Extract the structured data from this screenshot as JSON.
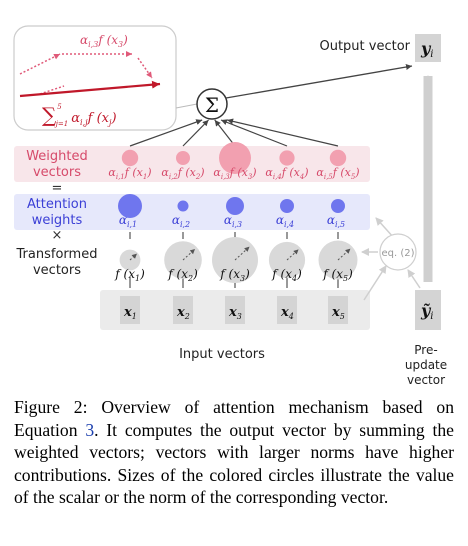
{
  "figure": {
    "labels": {
      "output_vector": "Output vector",
      "weighted": "Weighted",
      "vectors": "vectors",
      "attention": "Attention",
      "weights": "weights",
      "transformed": "Transformed",
      "transformed_vectors": "vectors",
      "equals_sign": "=",
      "times_sign": "×",
      "input_vectors": "Input vectors",
      "pre_update_vector": [
        "Pre-",
        "update",
        "vector"
      ],
      "eq_ref": "eq. (2)",
      "sigma": "Σ"
    },
    "math": {
      "y_i": "y",
      "y_i_sub": "i",
      "y_tilde": "ỹ",
      "y_tilde_sub": "i",
      "inset_term": "α",
      "inset_term_sub": "i,3",
      "inset_term_rest": "f (x",
      "inset_term_rest_sub": "3",
      "inset_term_close": ")",
      "inset_sum": "∑",
      "inset_sum_upper": "5",
      "inset_sum_lower": "j=1",
      "inset_sum_body": "α",
      "inset_sum_body_sub": "i,j",
      "inset_sum_body_rest": "f (x",
      "inset_sum_body_rest_sub": "j",
      "inset_sum_body_close": ")"
    },
    "columns": [
      {
        "index": "1",
        "alpha": "α",
        "alpha_sub": "i,1",
        "weighted_f": "f (x",
        "weighted_sub": "1",
        "f": "f (x",
        "x_sub": "1",
        "x": "x",
        "attention_weight_level": 0.9,
        "norm_level": 0.1,
        "weighted_level": 0.35
      },
      {
        "index": "2",
        "alpha": "α",
        "alpha_sub": "i,2",
        "weighted_f": "f (x",
        "weighted_sub": "2",
        "f": "f (x",
        "x_sub": "2",
        "x": "x",
        "attention_weight_level": 0.25,
        "norm_level": 0.7,
        "weighted_level": 0.25
      },
      {
        "index": "3",
        "alpha": "α",
        "alpha_sub": "i,3",
        "weighted_f": "f (x",
        "weighted_sub": "3",
        "f": "f (x",
        "x_sub": "3",
        "x": "x",
        "attention_weight_level": 0.6,
        "norm_level": 1.0,
        "weighted_level": 1.0
      },
      {
        "index": "4",
        "alpha": "α",
        "alpha_sub": "i,4",
        "weighted_f": "f (x",
        "weighted_sub": "4",
        "f": "f (x",
        "x_sub": "4",
        "x": "x",
        "attention_weight_level": 0.4,
        "norm_level": 0.65,
        "weighted_level": 0.3
      },
      {
        "index": "5",
        "alpha": "α",
        "alpha_sub": "i,5",
        "weighted_f": "f (x",
        "weighted_sub": "5",
        "f": "f (x",
        "x_sub": "5",
        "x": "x",
        "attention_weight_level": 0.4,
        "norm_level": 0.75,
        "weighted_level": 0.35
      }
    ],
    "colors": {
      "weighted_band": "#f8e6ea",
      "weighted_circle": "#f2a0b0",
      "weighted_text": "#d64a6a",
      "attention_band": "#e6e8fb",
      "attention_circle": "#6f76ee",
      "attention_text": "#3b3fd6",
      "transformed_circle": "#d9d9d9",
      "input_band": "#ebebeb",
      "input_cell": "#d4d4d4",
      "output_cell": "#d4d4d4",
      "arrow_gray": "#cfcfcf",
      "dark_arrow": "#444444",
      "inset_red": "#c0182a",
      "inset_pink": "#e05a79"
    }
  },
  "caption": {
    "prefix": "Figure 2: Overview of attention mechanism based on Equation ",
    "ref": "3",
    "suffix": ". It computes the output vector by summing the weighted vectors; vectors with larger norms have higher contributions. Sizes of the colored circles illustrate the value of the scalar or the norm of the corresponding vector."
  }
}
